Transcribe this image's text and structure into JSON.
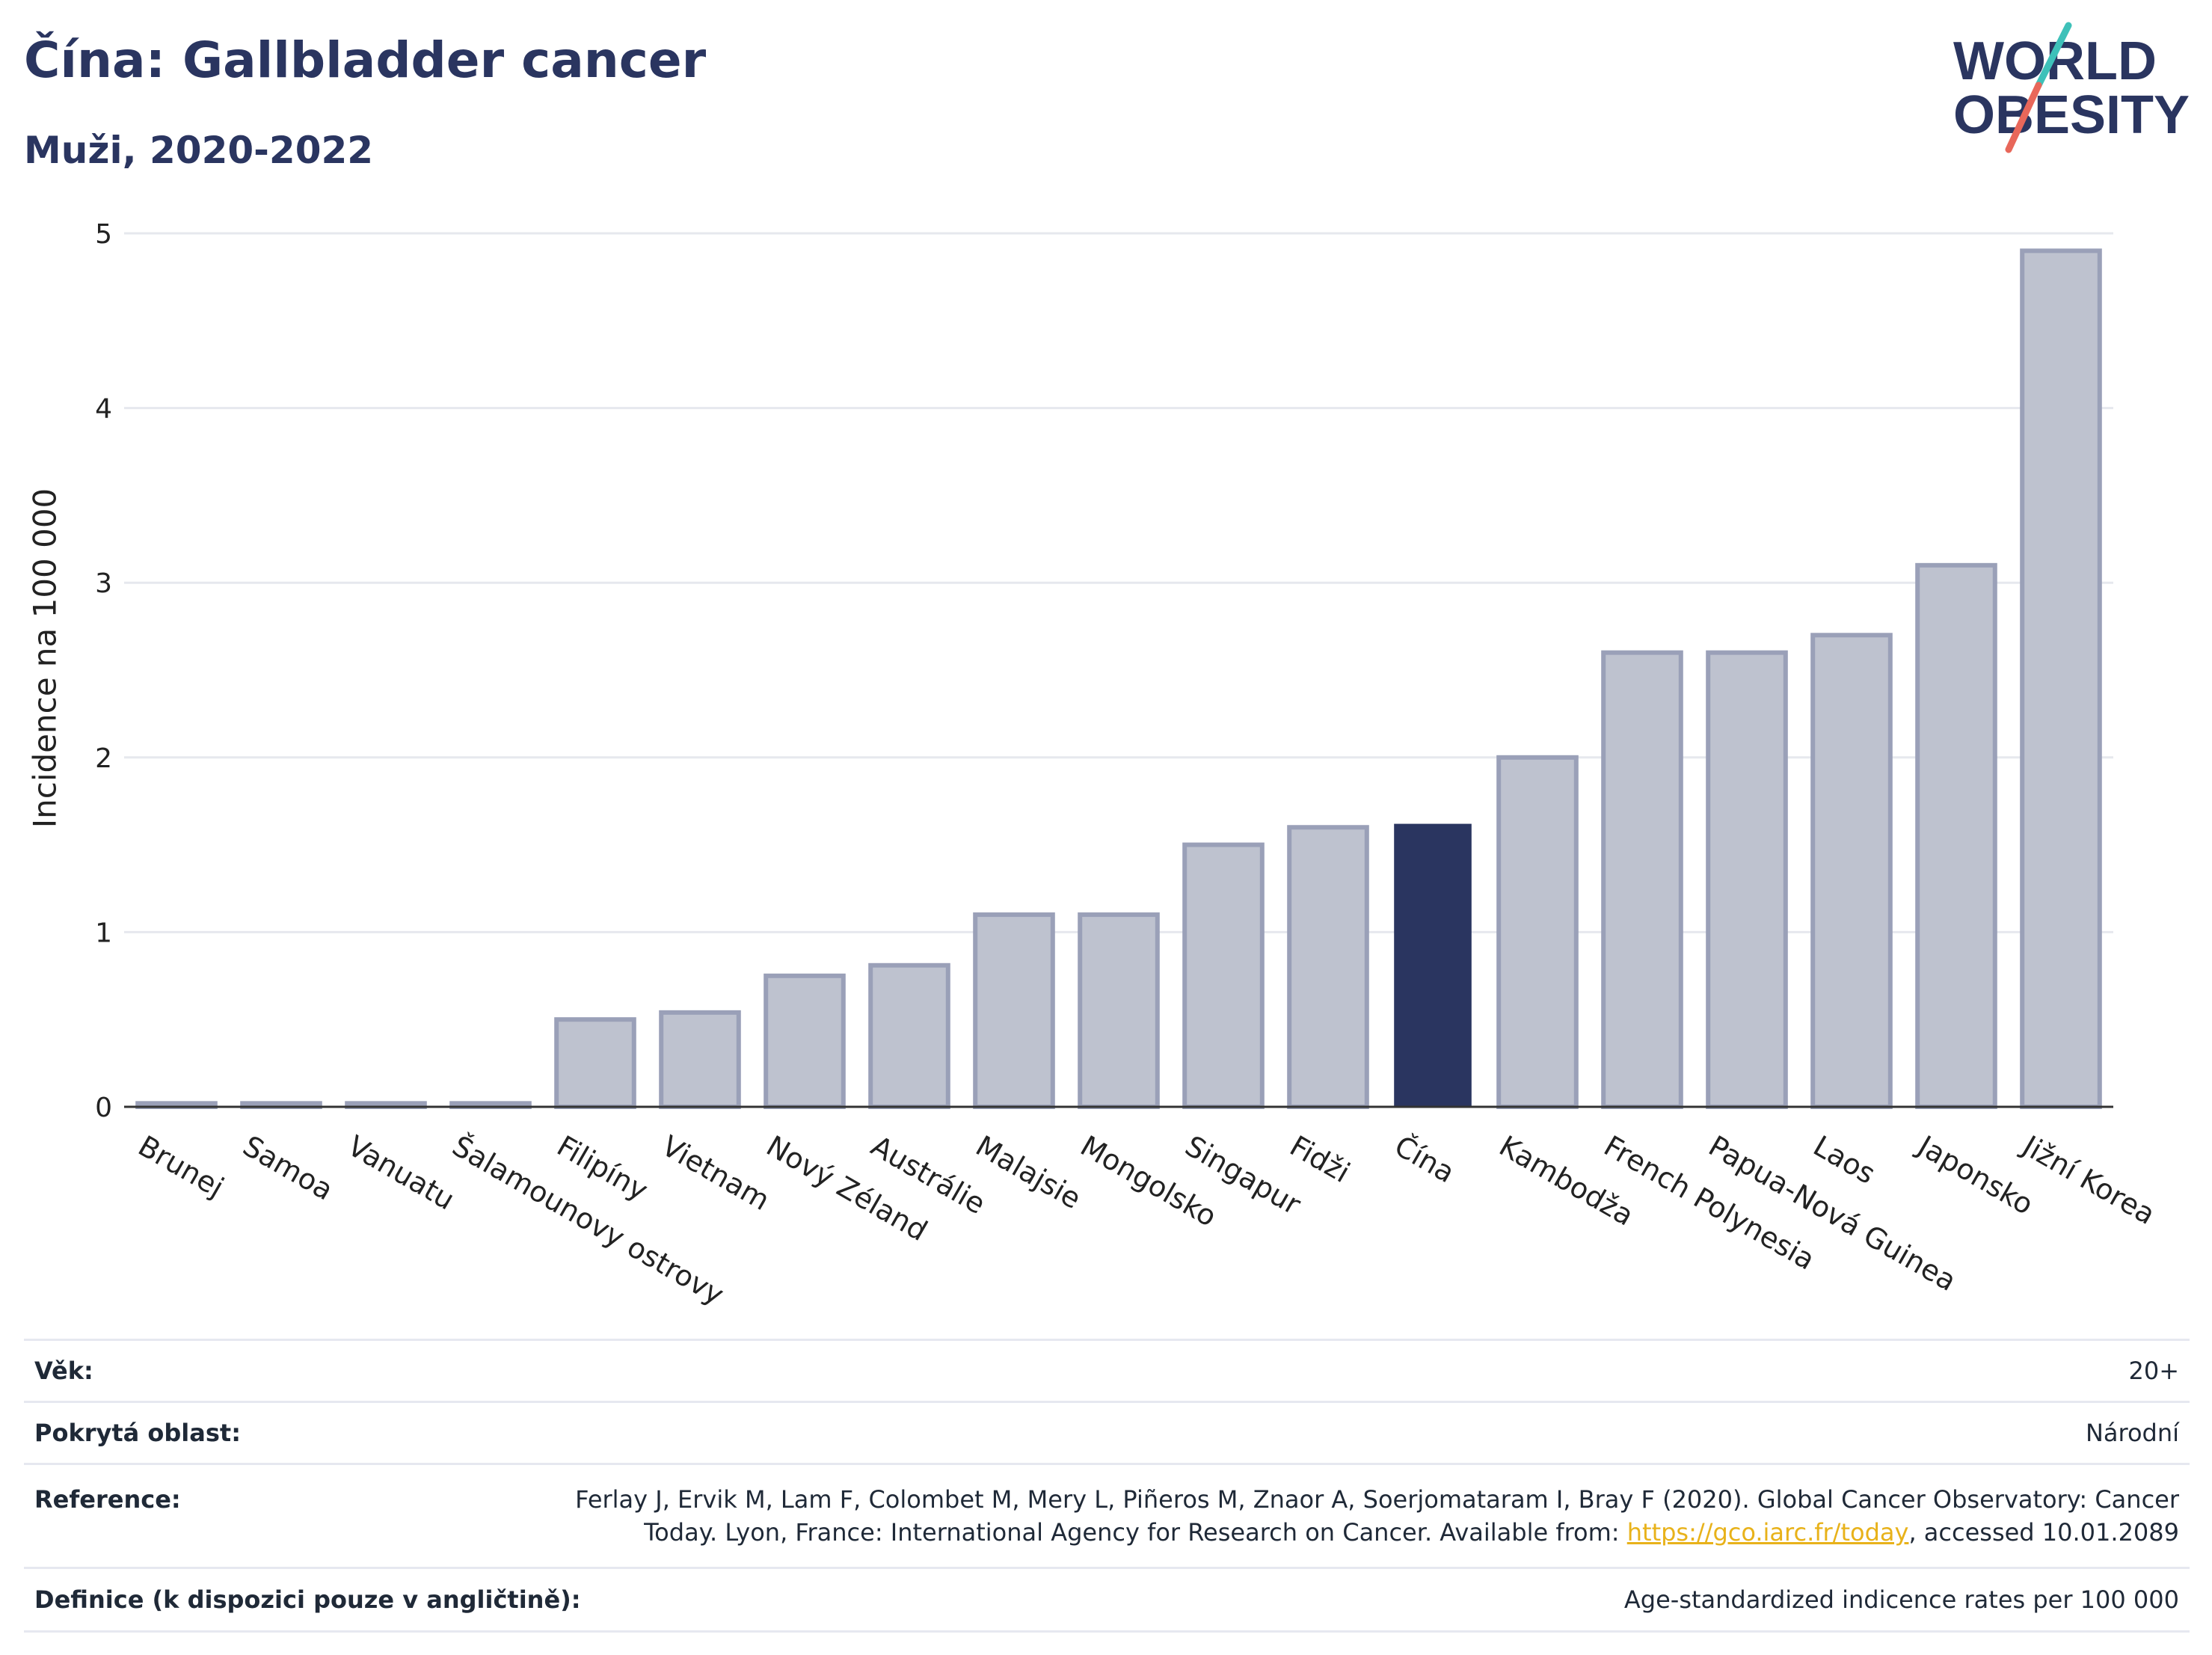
{
  "header": {
    "title": "Čína: Gallbladder cancer",
    "subtitle": "Muži, 2020-2022"
  },
  "logo": {
    "line1": "WORLD",
    "line2": "OBESITY",
    "text_color": "#2a3560",
    "slash_colors": [
      "#3ec1b9",
      "#e8675a"
    ]
  },
  "chart_data": {
    "type": "bar",
    "title": "Čína: Gallbladder cancer",
    "subtitle": "Muži, 2020-2022",
    "ylabel": "Incidence na 100 000",
    "xlabel": "",
    "ylim": [
      0,
      5
    ],
    "yticks": [
      0,
      1,
      2,
      3,
      4,
      5
    ],
    "grid": true,
    "categories": [
      "Brunej",
      "Samoa",
      "Vanuatu",
      "Šalamounovy ostrovy",
      "Filipíny",
      "Vietnam",
      "Nový Zéland",
      "Austrálie",
      "Malajsie",
      "Mongolsko",
      "Singapur",
      "Fidži",
      "Čína",
      "Kambodža",
      "French Polynesia",
      "Papua-Nová Guinea",
      "Laos",
      "Japonsko",
      "Jižní Korea"
    ],
    "values": [
      0.02,
      0.02,
      0.02,
      0.02,
      0.5,
      0.54,
      0.75,
      0.81,
      1.1,
      1.1,
      1.5,
      1.6,
      1.62,
      2.0,
      2.6,
      2.6,
      2.7,
      3.1,
      4.9
    ],
    "highlight": "Čína",
    "colors": {
      "bar_fill": "#bec2cf",
      "bar_stroke": "#9aa0b8",
      "highlight_fill": "#2a3560",
      "grid": "#e6e8ee",
      "axis": "#333333"
    }
  },
  "info": {
    "age_label": "Věk:",
    "age_value": "20+",
    "area_label": "Pokrytá oblast:",
    "area_value": "Národní",
    "reference_label": "Reference:",
    "reference_line1": "Ferlay J, Ervik M, Lam F, Colombet M, Mery L, Piñeros M, Znaor A, Soerjomataram I, Bray F (2020). Global Cancer Observatory: Cancer",
    "reference_line2_pre": "Today. Lyon, France: International Agency for Research on Cancer. Available from: ",
    "reference_link": "https://gco.iarc.fr/today",
    "reference_line2_post": ", accessed 10.01.2089",
    "definition_label": "Definice (k dispozici pouze v angličtině):",
    "definition_value": "Age-standardized indicence rates per 100 000"
  }
}
